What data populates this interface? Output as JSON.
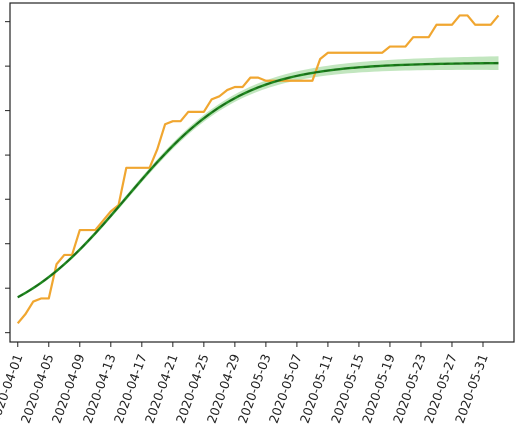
{
  "chart_data": {
    "type": "line",
    "title": "",
    "xlabel": "",
    "ylabel": "",
    "y_tick_labels_visible": false,
    "xlim": [
      "2020-03-31",
      "2020-06-04"
    ],
    "ylim": [
      -0.03,
      1.06
    ],
    "grid": false,
    "legend": "none",
    "x_tick_labels": [
      "2020-04-01",
      "2020-04-05",
      "2020-04-09",
      "2020-04-13",
      "2020-04-17",
      "2020-04-21",
      "2020-04-25",
      "2020-04-29",
      "2020-05-03",
      "2020-05-07",
      "2020-05-11",
      "2020-05-15",
      "2020-05-19",
      "2020-05-23",
      "2020-05-27",
      "2020-05-31"
    ],
    "y_ticks": [
      0,
      0.143,
      0.286,
      0.429,
      0.571,
      0.714,
      0.857,
      1.0
    ],
    "series": [
      {
        "style": "step-line",
        "color": "#f0a630",
        "points": [
          [
            "2020-04-01",
            0.03
          ],
          [
            "2020-04-02",
            0.06
          ],
          [
            "2020-04-03",
            0.1
          ],
          [
            "2020-04-04",
            0.11
          ],
          [
            "2020-04-05",
            0.11
          ],
          [
            "2020-04-06",
            0.22
          ],
          [
            "2020-04-07",
            0.25
          ],
          [
            "2020-04-08",
            0.25
          ],
          [
            "2020-04-09",
            0.33
          ],
          [
            "2020-04-10",
            0.33
          ],
          [
            "2020-04-11",
            0.33
          ],
          [
            "2020-04-12",
            0.36
          ],
          [
            "2020-04-13",
            0.39
          ],
          [
            "2020-04-14",
            0.41
          ],
          [
            "2020-04-15",
            0.53
          ],
          [
            "2020-04-16",
            0.53
          ],
          [
            "2020-04-17",
            0.53
          ],
          [
            "2020-04-18",
            0.53
          ],
          [
            "2020-04-19",
            0.59
          ],
          [
            "2020-04-20",
            0.67
          ],
          [
            "2020-04-21",
            0.68
          ],
          [
            "2020-04-22",
            0.68
          ],
          [
            "2020-04-23",
            0.71
          ],
          [
            "2020-04-24",
            0.71
          ],
          [
            "2020-04-25",
            0.71
          ],
          [
            "2020-04-26",
            0.75
          ],
          [
            "2020-04-27",
            0.76
          ],
          [
            "2020-04-28",
            0.78
          ],
          [
            "2020-04-29",
            0.79
          ],
          [
            "2020-04-30",
            0.79
          ],
          [
            "2020-05-01",
            0.82
          ],
          [
            "2020-05-02",
            0.82
          ],
          [
            "2020-05-03",
            0.81
          ],
          [
            "2020-05-04",
            0.81
          ],
          [
            "2020-05-05",
            0.81
          ],
          [
            "2020-05-06",
            0.81
          ],
          [
            "2020-05-07",
            0.81
          ],
          [
            "2020-05-08",
            0.81
          ],
          [
            "2020-05-09",
            0.81
          ],
          [
            "2020-05-10",
            0.88
          ],
          [
            "2020-05-11",
            0.9
          ],
          [
            "2020-05-12",
            0.9
          ],
          [
            "2020-05-13",
            0.9
          ],
          [
            "2020-05-14",
            0.9
          ],
          [
            "2020-05-15",
            0.9
          ],
          [
            "2020-05-16",
            0.9
          ],
          [
            "2020-05-17",
            0.9
          ],
          [
            "2020-05-18",
            0.9
          ],
          [
            "2020-05-19",
            0.92
          ],
          [
            "2020-05-20",
            0.92
          ],
          [
            "2020-05-21",
            0.92
          ],
          [
            "2020-05-22",
            0.95
          ],
          [
            "2020-05-23",
            0.95
          ],
          [
            "2020-05-24",
            0.95
          ],
          [
            "2020-05-25",
            0.99
          ],
          [
            "2020-05-26",
            0.99
          ],
          [
            "2020-05-27",
            0.99
          ],
          [
            "2020-05-28",
            1.02
          ],
          [
            "2020-05-29",
            1.02
          ],
          [
            "2020-05-30",
            0.99
          ],
          [
            "2020-05-31",
            0.99
          ],
          [
            "2020-06-01",
            0.99
          ],
          [
            "2020-06-02",
            1.02
          ]
        ]
      },
      {
        "style": "band",
        "color": "#8fd18a",
        "opacity": 0.55,
        "note_hidden": "",
        "x_start": "2020-04-01",
        "x_end": "2020-06-02",
        "center_start": 0.017,
        "halfwidth_start": 0.004,
        "halfwidth_end": 0.022
      },
      {
        "style": "line",
        "color": "#1f8a1f",
        "logistic": {
          "L": 0.868,
          "k": 0.135,
          "x0": "2020-04-15"
        },
        "x_start": "2020-04-01",
        "x_end": "2020-06-02"
      },
      {
        "style": "dashed",
        "color": "#1a6b1a",
        "logistic": {
          "L": 0.868,
          "k": 0.135,
          "x0": "2020-04-15"
        },
        "x_start": "2020-04-01",
        "x_end": "2020-06-02"
      }
    ]
  }
}
